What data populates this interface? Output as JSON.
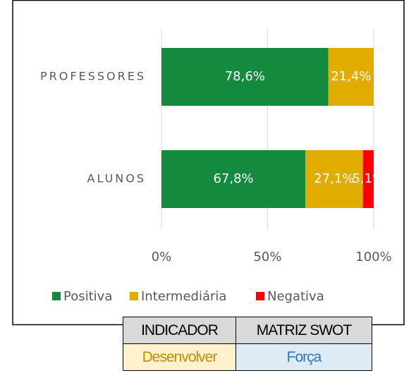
{
  "chart_data": {
    "type": "stacked_bar_horizontal",
    "categories": [
      "PROFESSORES",
      "ALUNOS"
    ],
    "series": [
      {
        "name": "Positiva",
        "color": "#138a3e",
        "values": [
          78.6,
          67.8
        ],
        "value_labels": [
          "78,6%",
          "67,8%"
        ]
      },
      {
        "name": "Intermediária",
        "color": "#e1ac00",
        "values": [
          21.4,
          27.1
        ],
        "value_labels": [
          "21,4%",
          "27,1%"
        ]
      },
      {
        "name": "Negativa",
        "color": "#ff0000",
        "values": [
          0,
          5.1
        ],
        "value_labels": [
          null,
          "5,1%"
        ]
      }
    ],
    "xlim": [
      0,
      100
    ],
    "xticks": [
      {
        "value": 0,
        "label": "0%"
      },
      {
        "value": 50,
        "label": "50%"
      },
      {
        "value": 100,
        "label": "100%"
      }
    ],
    "grid": true,
    "legend": "bottom"
  },
  "table": {
    "header": [
      "INDICADOR",
      "MATRIZ SWOT"
    ],
    "rows": [
      [
        "Desenvolver",
        "Força"
      ]
    ]
  }
}
